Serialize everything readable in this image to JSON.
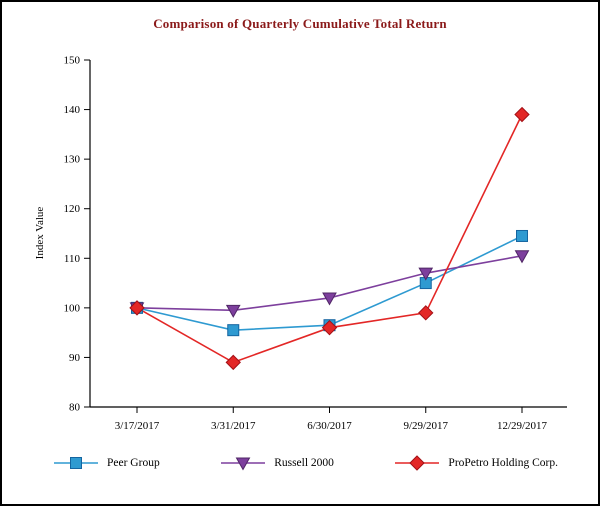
{
  "page": {
    "background": "#ffffff",
    "frame_color": "#000000"
  },
  "chart_data": {
    "type": "line",
    "title": "Comparison of Quarterly Cumulative Total Return",
    "title_color": "#8b1a1a",
    "ylabel": "Index Value",
    "xlabel": "",
    "categories": [
      "3/17/2017",
      "3/31/2017",
      "6/30/2017",
      "9/29/2017",
      "12/29/2017"
    ],
    "ylim": [
      80,
      150
    ],
    "ytick_step": 10,
    "grid": false,
    "legend_position": "bottom",
    "axis_color": "#000000",
    "series": [
      {
        "name": "Peer Group",
        "marker": "square",
        "color": "#2e9ad1",
        "marker_border": "#1565a0",
        "values": [
          100,
          95.5,
          96.5,
          105,
          114.5
        ]
      },
      {
        "name": "Russell 2000",
        "marker": "triangle-down",
        "color": "#7d3f9d",
        "marker_border": "#502766",
        "values": [
          100,
          99.5,
          102,
          107,
          110.5
        ]
      },
      {
        "name": "ProPetro Holding Corp.",
        "marker": "diamond",
        "color": "#e32726",
        "marker_border": "#a21016",
        "values": [
          100,
          89,
          96,
          99,
          139
        ]
      }
    ]
  }
}
